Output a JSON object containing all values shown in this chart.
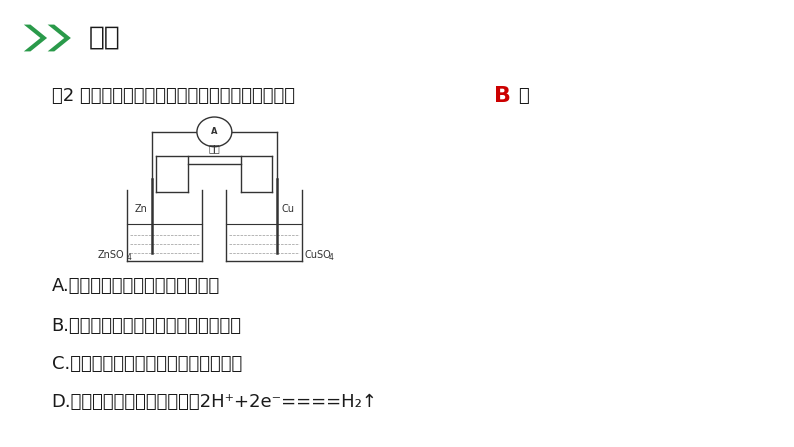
{
  "bg_color": "#ffffff",
  "header_arrow_color": "#2a9a4a",
  "header_text": "例题",
  "header_text_color": "#1a1a1a",
  "question_text": "例2 关于下图所示的原电池，下列说法正确的是（",
  "answer_letter": "B",
  "answer_color": "#cc0000",
  "question_end": "）",
  "options": [
    "A.锌是电池的负极，发生还原反应",
    "B.盐桥中的阳离子向硫酸铜溶液中迁移",
    "C.电流从锌电极通过电流计流向铜电极",
    "D.铜电极上发生的电极反应是2H⁺+2e⁻====H₂↑"
  ],
  "text_color": "#1a1a1a",
  "header_fontsize": 19,
  "question_fontsize": 13,
  "option_fontsize": 13,
  "diagram_fontsize": 7,
  "lc": "#333333",
  "lw": 1.0
}
